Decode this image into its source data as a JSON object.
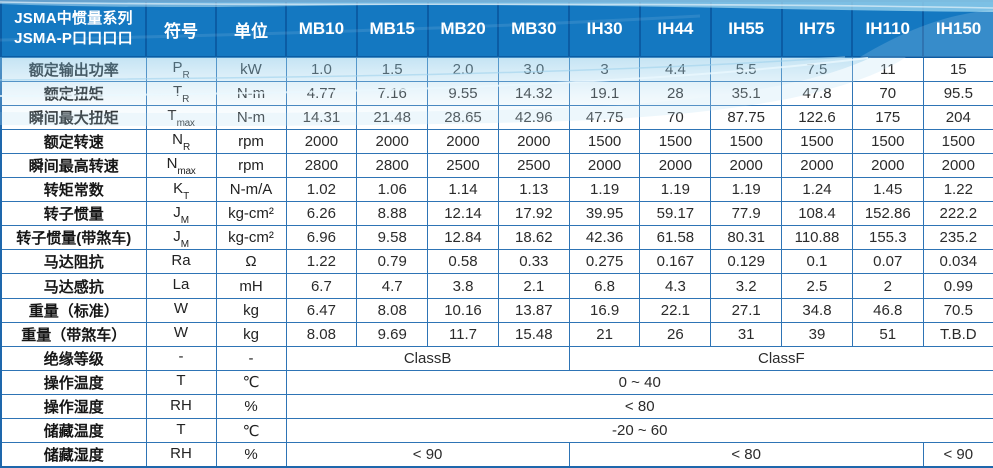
{
  "table": {
    "title_line1": "JSMA中惯量系列",
    "title_line2": "JSMA-P口口口口",
    "symbol_header": "符号",
    "unit_header": "单位",
    "models": [
      "MB10",
      "MB15",
      "MB20",
      "MB30",
      "IH30",
      "IH44",
      "IH55",
      "IH75",
      "IH110",
      "IH150"
    ],
    "rows": [
      {
        "label": "额定输出功率",
        "sym": "P",
        "sub": "R",
        "unit": "kW",
        "values": [
          "1.0",
          "1.5",
          "2.0",
          "3.0",
          "3",
          "4.4",
          "5.5",
          "7.5",
          "11",
          "15"
        ]
      },
      {
        "label": "额定扭矩",
        "sym": "T",
        "sub": "R",
        "unit": "N-m",
        "values": [
          "4.77",
          "7.16",
          "9.55",
          "14.32",
          "19.1",
          "28",
          "35.1",
          "47.8",
          "70",
          "95.5"
        ]
      },
      {
        "label": "瞬间最大扭矩",
        "sym": "T",
        "sub": "max",
        "unit": "N-m",
        "values": [
          "14.31",
          "21.48",
          "28.65",
          "42.96",
          "47.75",
          "70",
          "87.75",
          "122.6",
          "175",
          "204"
        ]
      },
      {
        "label": "额定转速",
        "sym": "N",
        "sub": "R",
        "unit": "rpm",
        "values": [
          "2000",
          "2000",
          "2000",
          "2000",
          "1500",
          "1500",
          "1500",
          "1500",
          "1500",
          "1500"
        ]
      },
      {
        "label": "瞬间最高转速",
        "sym": "N",
        "sub": "max",
        "unit": "rpm",
        "values": [
          "2800",
          "2800",
          "2500",
          "2500",
          "2000",
          "2000",
          "2000",
          "2000",
          "2000",
          "2000"
        ]
      },
      {
        "label": "转矩常数",
        "sym": "K",
        "sub": "T",
        "unit": "N-m/A",
        "values": [
          "1.02",
          "1.06",
          "1.14",
          "1.13",
          "1.19",
          "1.19",
          "1.19",
          "1.24",
          "1.45",
          "1.22"
        ]
      },
      {
        "label": "转子惯量",
        "sym": "J",
        "sub": "M",
        "unit": "kg-cm²",
        "values": [
          "6.26",
          "8.88",
          "12.14",
          "17.92",
          "39.95",
          "59.17",
          "77.9",
          "108.4",
          "152.86",
          "222.2"
        ]
      },
      {
        "label": "转子惯量(带煞车)",
        "sym": "J",
        "sub": "M",
        "unit": "kg-cm²",
        "values": [
          "6.96",
          "9.58",
          "12.84",
          "18.62",
          "42.36",
          "61.58",
          "80.31",
          "110.88",
          "155.3",
          "235.2"
        ]
      },
      {
        "label": "马达阻抗",
        "sym": "Ra",
        "sub": "",
        "unit": "Ω",
        "values": [
          "1.22",
          "0.79",
          "0.58",
          "0.33",
          "0.275",
          "0.167",
          "0.129",
          "0.1",
          "0.07",
          "0.034"
        ]
      },
      {
        "label": "马达感抗",
        "sym": "La",
        "sub": "",
        "unit": "mH",
        "values": [
          "6.7",
          "4.7",
          "3.8",
          "2.1",
          "6.8",
          "4.3",
          "3.2",
          "2.5",
          "2",
          "0.99"
        ]
      },
      {
        "label": "重量（标准）",
        "sym": "W",
        "sub": "",
        "unit": "kg",
        "values": [
          "6.47",
          "8.08",
          "10.16",
          "13.87",
          "16.9",
          "22.1",
          "27.1",
          "34.8",
          "46.8",
          "70.5"
        ]
      },
      {
        "label": "重量（带煞车）",
        "sym": "W",
        "sub": "",
        "unit": "kg",
        "values": [
          "8.08",
          "9.69",
          "11.7",
          "15.48",
          "21",
          "26",
          "31",
          "39",
          "51",
          "T.B.D"
        ]
      },
      {
        "label": "绝缘等级",
        "sym": "-",
        "sub": "",
        "unit": "-",
        "spans": [
          {
            "text": "ClassB",
            "cols": 4
          },
          {
            "text": "ClassF",
            "cols": 6
          }
        ]
      },
      {
        "label": "操作温度",
        "sym": "T",
        "sub": "",
        "unit": "℃",
        "spans": [
          {
            "text": "0 ~ 40",
            "cols": 10
          }
        ]
      },
      {
        "label": "操作湿度",
        "sym": "RH",
        "sub": "",
        "unit": "%",
        "spans": [
          {
            "text": "< 80",
            "cols": 10
          }
        ]
      },
      {
        "label": "储藏温度",
        "sym": "T",
        "sub": "",
        "unit": "℃",
        "spans": [
          {
            "text": "-20 ~ 60",
            "cols": 10
          }
        ]
      },
      {
        "label": "储藏湿度",
        "sym": "RH",
        "sub": "",
        "unit": "%",
        "spans": [
          {
            "text": "< 90",
            "cols": 4
          },
          {
            "text": "< 80",
            "cols": 5
          },
          {
            "text": "< 90",
            "cols": 1
          }
        ]
      }
    ],
    "colors": {
      "header_bg": "#1478c1",
      "header_border": "#0b5ca4",
      "cell_border": "#2e74b5",
      "header_text": "#ffffff",
      "body_text": "#2b2b2b",
      "wave_light_blue": "#8ecdeb"
    }
  }
}
